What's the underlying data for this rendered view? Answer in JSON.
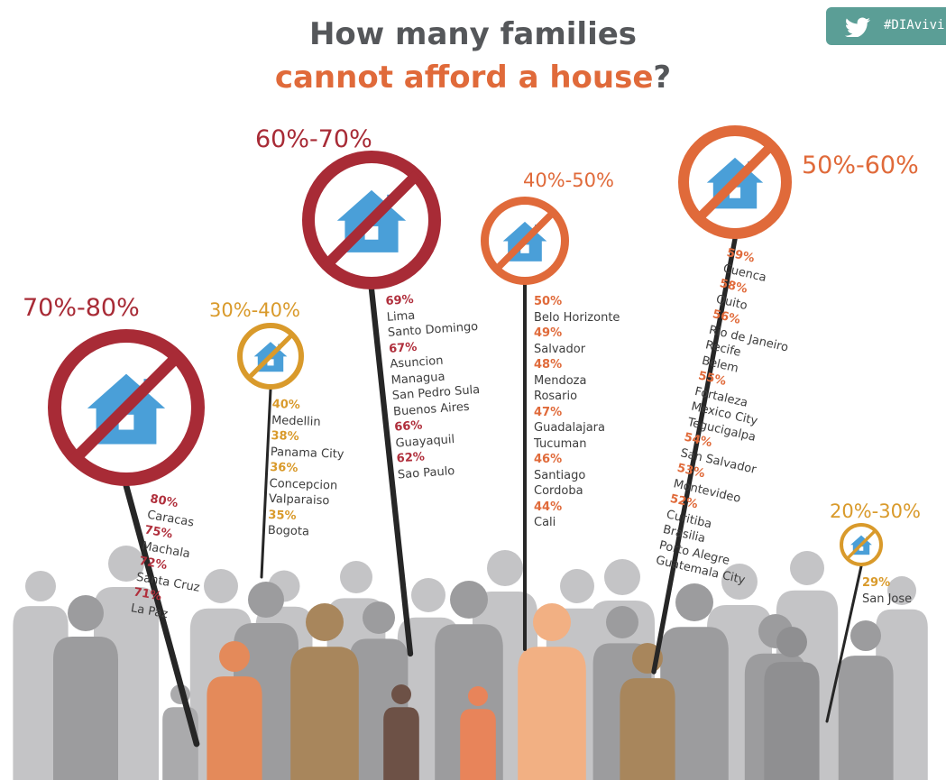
{
  "header": {
    "title_line1": "How many families",
    "title_line2_main": "cannot afford a house",
    "title_line2_end": "?"
  },
  "hashtag": {
    "text": "#DIAvivi",
    "icon": "twitter-bird-icon"
  },
  "icons": {
    "sign": "no-house-icon",
    "crowd": "family-silhouette-icon"
  },
  "colors": {
    "red": "#a82b36",
    "orange": "#e06a3a",
    "gold": "#d99a2b",
    "house_blue": "#4a9fd8",
    "title_grey": "#55575a",
    "tag_teal": "#5b9e96"
  },
  "groups": [
    {
      "range": "70%-80%",
      "color": "#a82b36",
      "pct_color": "#b02f3c",
      "items": [
        {
          "pct": "80%",
          "cities": [
            "Caracas"
          ]
        },
        {
          "pct": "75%",
          "cities": [
            "Machala"
          ]
        },
        {
          "pct": "72%",
          "cities": [
            "Santa Cruz"
          ]
        },
        {
          "pct": "71%",
          "cities": [
            "La Paz"
          ]
        }
      ]
    },
    {
      "range": "30%-40%",
      "color": "#d99a2b",
      "pct_color": "#d99a2b",
      "items": [
        {
          "pct": "40%",
          "cities": [
            "Medellin"
          ]
        },
        {
          "pct": "38%",
          "cities": [
            "Panama City"
          ]
        },
        {
          "pct": "36%",
          "cities": [
            "Concepcion",
            "Valparaiso"
          ]
        },
        {
          "pct": "35%",
          "cities": [
            "Bogota"
          ]
        }
      ]
    },
    {
      "range": "60%-70%",
      "color": "#a82b36",
      "pct_color": "#b02f3c",
      "items": [
        {
          "pct": "69%",
          "cities": [
            "Lima",
            "Santo Domingo"
          ]
        },
        {
          "pct": "67%",
          "cities": [
            "Asuncion",
            "Managua",
            "San Pedro Sula",
            "Buenos Aires"
          ]
        },
        {
          "pct": "66%",
          "cities": [
            "Guayaquil"
          ]
        },
        {
          "pct": "62%",
          "cities": [
            "Sao Paulo"
          ]
        }
      ]
    },
    {
      "range": "40%-50%",
      "color": "#e06a3a",
      "pct_color": "#e06a3a",
      "items": [
        {
          "pct": "50%",
          "cities": [
            "Belo Horizonte"
          ]
        },
        {
          "pct": "49%",
          "cities": [
            "Salvador"
          ]
        },
        {
          "pct": "48%",
          "cities": [
            "Mendoza",
            "Rosario"
          ]
        },
        {
          "pct": "47%",
          "cities": [
            "Guadalajara",
            "Tucuman"
          ]
        },
        {
          "pct": "46%",
          "cities": [
            "Santiago",
            "Cordoba"
          ]
        },
        {
          "pct": "44%",
          "cities": [
            "Cali"
          ]
        }
      ]
    },
    {
      "range": "50%-60%",
      "color": "#e06a3a",
      "pct_color": "#e06a3a",
      "items": [
        {
          "pct": "59%",
          "cities": [
            "Cuenca"
          ]
        },
        {
          "pct": "58%",
          "cities": [
            "Quito"
          ]
        },
        {
          "pct": "56%",
          "cities": [
            "Rio de Janeiro",
            "Recife",
            "Belem"
          ]
        },
        {
          "pct": "55%",
          "cities": [
            "Fortaleza",
            "Mexico City",
            "Tegucigalpa"
          ]
        },
        {
          "pct": "54%",
          "cities": [
            "San Salvador"
          ]
        },
        {
          "pct": "53%",
          "cities": [
            "Montevideo"
          ]
        },
        {
          "pct": "52%",
          "cities": [
            "Curitiba",
            "Brasilia",
            "Porto Alegre",
            "Guatemala City"
          ]
        }
      ]
    },
    {
      "range": "20%-30%",
      "color": "#d99a2b",
      "pct_color": "#d99a2b",
      "items": [
        {
          "pct": "29%",
          "cities": [
            "San Jose"
          ]
        }
      ]
    }
  ]
}
